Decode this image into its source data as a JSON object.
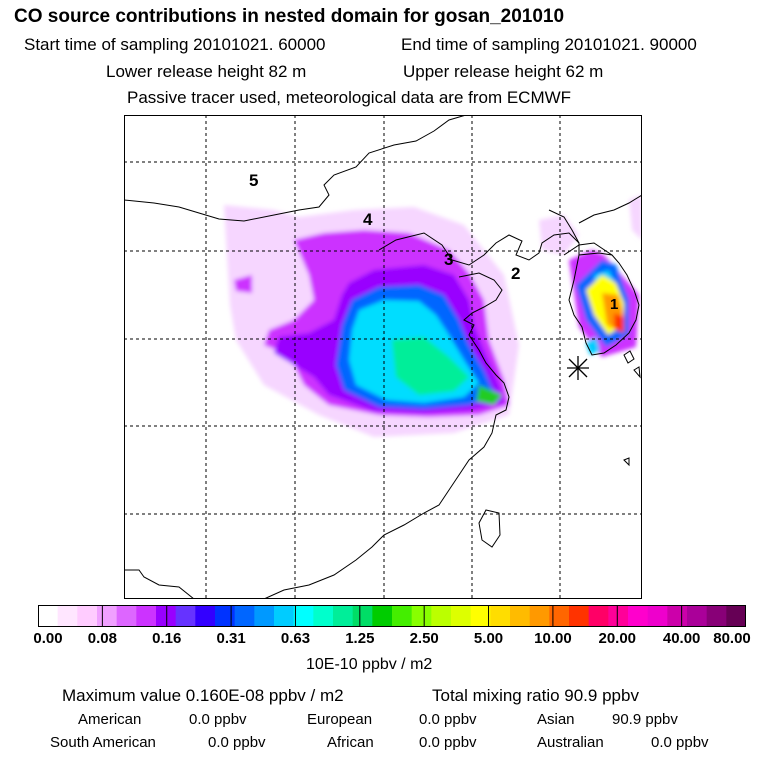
{
  "header": {
    "title": "CO  source contributions in nested domain for gosan_201010",
    "start_time": "Start time of sampling 20101021. 60000",
    "end_time": "End time of sampling 20101021. 90000",
    "lower_height": "Lower release height   82 m",
    "upper_height": "Upper release height   62 m",
    "note": "Passive tracer used, meteorological data are from ECMWF"
  },
  "map": {
    "region_labels": [
      "1",
      "2",
      "3",
      "4",
      "5"
    ],
    "marker": "receptor-star"
  },
  "colorbar": {
    "ticks": [
      "0.00",
      "0.08",
      "0.16",
      "0.31",
      "0.63",
      "1.25",
      "2.50",
      "5.00",
      "10.00",
      "20.00",
      "40.00",
      "80.00"
    ],
    "units": "10E-10 ppbv / m2",
    "colors": [
      "#ffffff",
      "#ffe6ff",
      "#ffccff",
      "#f0a0ff",
      "#dd66ff",
      "#cc33ff",
      "#9900ff",
      "#6633ff",
      "#3300ff",
      "#0033ff",
      "#0066ff",
      "#0099ff",
      "#00ccff",
      "#00ffff",
      "#00ffcc",
      "#00ee99",
      "#00dd66",
      "#00cc00",
      "#44ee00",
      "#88ff00",
      "#bbff00",
      "#ddff00",
      "#ffff00",
      "#ffdd00",
      "#ffbb00",
      "#ff9900",
      "#ff6600",
      "#ff3300",
      "#ff0066",
      "#ff0099",
      "#ff00cc",
      "#ee00cc",
      "#cc00aa",
      "#aa0099",
      "#880077",
      "#660055"
    ]
  },
  "summary": {
    "max_value": "Maximum value  0.160E-08 ppbv / m2",
    "total": "Total mixing ratio      90.9 ppbv",
    "american": "American",
    "american_val": "0.0 ppbv",
    "european": "European",
    "european_val": "0.0 ppbv",
    "asian": "Asian",
    "asian_val": "90.9 ppbv",
    "south_american": "South American",
    "south_american_val": "0.0 ppbv",
    "african": "African",
    "african_val": "0.0 ppbv",
    "australian": "Australian",
    "australian_val": "0.0 ppbv"
  }
}
